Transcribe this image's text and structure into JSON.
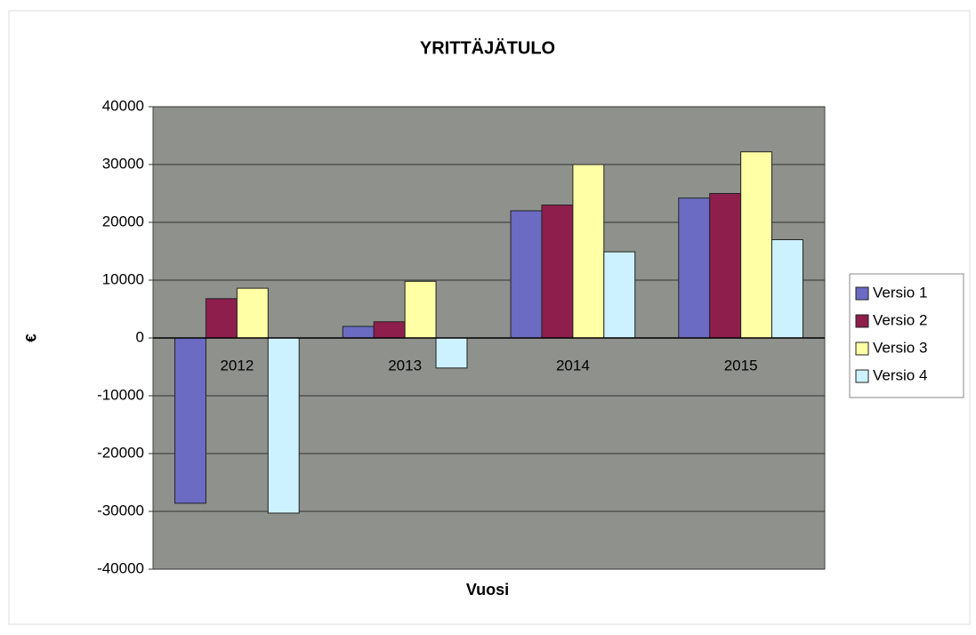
{
  "chart_data": {
    "type": "bar",
    "title": "YRITTÄJÄTULO",
    "x_label": "Vuosi",
    "y_label": "€",
    "categories": [
      "2012",
      "2013",
      "2014",
      "2015"
    ],
    "series": [
      {
        "name": "Versio 1",
        "color": "#6b6bc4",
        "values": [
          -28600,
          2000,
          22000,
          24200
        ]
      },
      {
        "name": "Versio 2",
        "color": "#8e1f4c",
        "values": [
          6800,
          2800,
          23000,
          25000
        ]
      },
      {
        "name": "Versio 3",
        "color": "#ffffa6",
        "values": [
          8600,
          9800,
          30000,
          32200
        ]
      },
      {
        "name": "Versio 4",
        "color": "#cdf2ff",
        "values": [
          -30300,
          -5200,
          14900,
          17000
        ]
      }
    ],
    "ylim": [
      -40000,
      40000
    ],
    "yticks": [
      -40000,
      -30000,
      -20000,
      -10000,
      0,
      10000,
      20000,
      30000,
      40000
    ],
    "grid": true,
    "legend": "right"
  }
}
